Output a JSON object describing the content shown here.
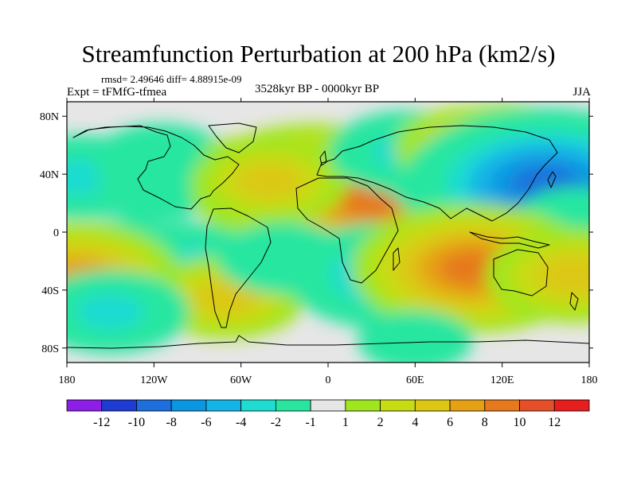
{
  "chart_data": {
    "type": "heatmap",
    "title": "Streamfunction Perturbation at 200 hPa (km2/s)",
    "stats_text": "rmsd= 2.49646  diff= 4.88915e-09",
    "left_label": "Expt = tFMfG-tfmea",
    "center_label": "3528kyr BP - 0000kyr BP",
    "right_label": "JJA",
    "x_ticks": [
      {
        "value": -180,
        "label": "180"
      },
      {
        "value": -120,
        "label": "120W"
      },
      {
        "value": -60,
        "label": "60W"
      },
      {
        "value": 0,
        "label": "0"
      },
      {
        "value": 60,
        "label": "60E"
      },
      {
        "value": 120,
        "label": "120E"
      },
      {
        "value": 180,
        "label": "180"
      }
    ],
    "y_ticks": [
      {
        "value": 80,
        "label": "80N"
      },
      {
        "value": 40,
        "label": "40N"
      },
      {
        "value": 0,
        "label": "0"
      },
      {
        "value": -40,
        "label": "40S"
      },
      {
        "value": -80,
        "label": "80S"
      }
    ],
    "xlim": [
      -180,
      180
    ],
    "ylim": [
      -90,
      90
    ],
    "colorbar": {
      "labels": [
        "-12",
        "-10",
        "-8",
        "-6",
        "-4",
        "-2",
        "-1",
        "1",
        "2",
        "4",
        "6",
        "8",
        "10",
        "12"
      ],
      "colors": [
        "#8c1ee6",
        "#1e3cd2",
        "#1e6edc",
        "#0a96e1",
        "#14b4e6",
        "#1edcd2",
        "#28e6a0",
        "#e6e6e6",
        "#a0e61e",
        "#c8dc14",
        "#dcc814",
        "#e6a014",
        "#e6781e",
        "#e65028",
        "#e61e1e"
      ]
    },
    "anomalies": [
      {
        "lon": -170,
        "lat": 38,
        "value": -4
      },
      {
        "lon": -115,
        "lat": 50,
        "value": -3
      },
      {
        "lon": -120,
        "lat": 28,
        "value": -2
      },
      {
        "lon": -55,
        "lat": 45,
        "value": 2
      },
      {
        "lon": -75,
        "lat": 35,
        "value": -2
      },
      {
        "lon": -10,
        "lat": 30,
        "value": 8
      },
      {
        "lon": 30,
        "lat": 22,
        "value": 8
      },
      {
        "lon": -40,
        "lat": 35,
        "value": 4
      },
      {
        "lon": 55,
        "lat": 55,
        "value": -4
      },
      {
        "lon": 95,
        "lat": 35,
        "value": -4
      },
      {
        "lon": 120,
        "lat": 60,
        "value": 4
      },
      {
        "lon": 100,
        "lat": 58,
        "value": 4
      },
      {
        "lon": 150,
        "lat": 33,
        "value": -10
      },
      {
        "lon": 170,
        "lat": 10,
        "value": -2
      },
      {
        "lon": -100,
        "lat": -22,
        "value": -4
      },
      {
        "lon": -140,
        "lat": -12,
        "value": -2
      },
      {
        "lon": -70,
        "lat": -45,
        "value": 4
      },
      {
        "lon": -30,
        "lat": -18,
        "value": -3
      },
      {
        "lon": 40,
        "lat": -30,
        "value": -6
      },
      {
        "lon": 100,
        "lat": -25,
        "value": 8
      },
      {
        "lon": 170,
        "lat": -30,
        "value": 5
      },
      {
        "lon": -172,
        "lat": -30,
        "value": 6
      },
      {
        "lon": -150,
        "lat": -55,
        "value": -4
      },
      {
        "lon": 60,
        "lat": -75,
        "value": -2
      }
    ]
  }
}
